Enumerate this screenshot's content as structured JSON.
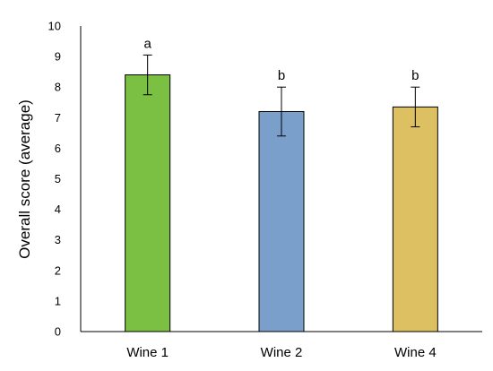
{
  "chart_data": {
    "type": "bar",
    "categories": [
      "Wine 1",
      "Wine 2",
      "Wine 4"
    ],
    "values": [
      8.4,
      7.2,
      7.35
    ],
    "error": [
      0.65,
      0.8,
      0.65
    ],
    "significance": [
      "a",
      "b",
      "b"
    ],
    "colors": [
      "#7bc043",
      "#7b9fcb",
      "#dcc062"
    ],
    "xlabel": "",
    "ylabel": "Overall score (average)",
    "ylim": [
      0,
      10
    ],
    "yticks": [
      "0",
      "1",
      "2",
      "3",
      "4",
      "5",
      "6",
      "7",
      "8",
      "9",
      "10"
    ],
    "grid": false,
    "legend": "none"
  }
}
